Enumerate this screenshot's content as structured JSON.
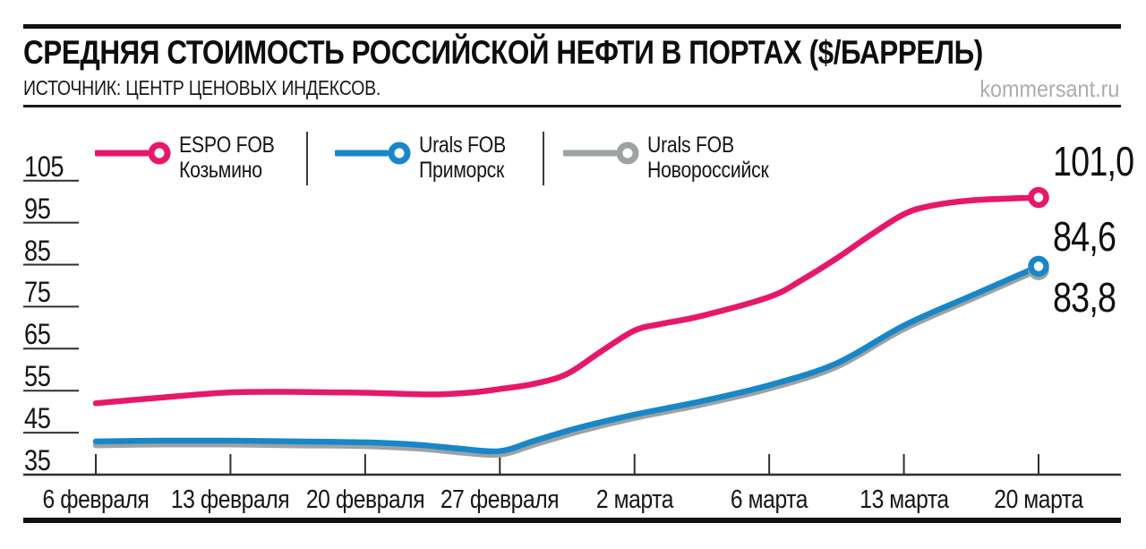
{
  "header": {
    "title": "СРЕДНЯЯ СТОИМОСТЬ РОССИЙСКОЙ НЕФТИ В ПОРТАХ ($/БАРРЕЛЬ)",
    "source": "ИСТОЧНИК: ЦЕНТР ЦЕНОВЫХ ИНДЕКСОВ.",
    "watermark": "kommersant.ru"
  },
  "chart_data": {
    "type": "line",
    "title": "СРЕДНЯЯ СТОИМОСТЬ РОССИЙСКОЙ НЕФТИ В ПОРТАХ ($/БАРРЕЛЬ)",
    "unit": "$/баррель",
    "legend_position": "top",
    "grid": "short-dashes-on-left-axis-only",
    "ylim": [
      35,
      105
    ],
    "y_ticks": [
      35,
      45,
      55,
      65,
      75,
      85,
      95,
      105
    ],
    "x_tick_labels": [
      "6 февраля",
      "13 февраля",
      "20 февраля",
      "27 февраля",
      "2 марта",
      "6 марта",
      "13 марта",
      "20 марта"
    ],
    "x_unit": "tick index 0–7 (fractional points are intermediate dates)",
    "series": [
      {
        "name_line1": "ESPO FOB",
        "name_line2": "Козьмино",
        "color": "#e7176a",
        "end_label": "101,0",
        "end_value": 101.0,
        "label_dy": -40,
        "values_at_ticks": [
          52.0,
          54.6,
          54.5,
          55.4,
          69.3,
          77.3,
          97.0,
          101.0
        ],
        "points": [
          [
            0,
            52.0
          ],
          [
            0.5,
            53.4
          ],
          [
            1,
            54.6
          ],
          [
            1.5,
            54.7
          ],
          [
            2,
            54.5
          ],
          [
            2.5,
            54.1
          ],
          [
            2.8,
            54.6
          ],
          [
            3,
            55.4
          ],
          [
            3.25,
            56.6
          ],
          [
            3.5,
            59.0
          ],
          [
            3.75,
            64.3
          ],
          [
            4,
            69.3
          ],
          [
            4.2,
            70.9
          ],
          [
            4.5,
            72.8
          ],
          [
            5,
            77.3
          ],
          [
            5.25,
            81.5
          ],
          [
            5.5,
            86.5
          ],
          [
            5.75,
            92.0
          ],
          [
            6,
            97.0
          ],
          [
            6.2,
            99.0
          ],
          [
            6.5,
            100.3
          ],
          [
            7,
            101.0
          ]
        ]
      },
      {
        "name_line1": "Urals FOB",
        "name_line2": "Приморск",
        "color": "#1787c9",
        "end_label": "84,6",
        "end_value": 84.6,
        "label_dy": -33,
        "values_at_ticks": [
          42.9,
          43.1,
          42.7,
          40.6,
          49.3,
          56.3,
          70.5,
          84.6
        ],
        "points": [
          [
            0,
            42.9
          ],
          [
            0.5,
            43.1
          ],
          [
            1,
            43.1
          ],
          [
            1.5,
            42.9
          ],
          [
            2,
            42.7
          ],
          [
            2.4,
            42.1
          ],
          [
            2.7,
            41.2
          ],
          [
            3,
            40.6
          ],
          [
            3.25,
            43.0
          ],
          [
            3.6,
            46.3
          ],
          [
            4,
            49.3
          ],
          [
            4.5,
            52.5
          ],
          [
            5,
            56.3
          ],
          [
            5.5,
            61.5
          ],
          [
            6,
            70.5
          ],
          [
            6.5,
            77.6
          ],
          [
            7,
            84.6
          ]
        ]
      },
      {
        "name_line1": "Urals FOB",
        "name_line2": "Новороссийск",
        "color": "#9da2a2",
        "end_label": "83,8",
        "end_value": 83.8,
        "label_dy": 31,
        "values_at_ticks": [
          42.0,
          42.2,
          41.8,
          39.8,
          48.5,
          55.5,
          69.7,
          83.8
        ],
        "points": [
          [
            0,
            42.0
          ],
          [
            0.5,
            42.2
          ],
          [
            1,
            42.2
          ],
          [
            1.5,
            42.0
          ],
          [
            2,
            41.8
          ],
          [
            2.4,
            41.2
          ],
          [
            2.7,
            40.3
          ],
          [
            3,
            39.8
          ],
          [
            3.25,
            42.1
          ],
          [
            3.6,
            45.4
          ],
          [
            4,
            48.5
          ],
          [
            4.5,
            51.7
          ],
          [
            5,
            55.5
          ],
          [
            5.5,
            60.7
          ],
          [
            6,
            69.7
          ],
          [
            6.5,
            76.8
          ],
          [
            7,
            83.8
          ]
        ]
      }
    ]
  }
}
